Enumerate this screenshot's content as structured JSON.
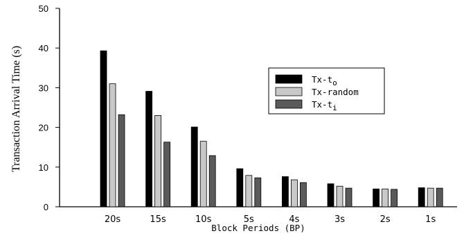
{
  "chart_data": {
    "type": "bar",
    "xlabel": "Block Periods (BP)",
    "ylabel": "Transaction Arrival Time (s)",
    "ylim": [
      0,
      50
    ],
    "yticks": [
      0,
      10,
      20,
      30,
      40,
      50
    ],
    "categories": [
      "20s",
      "15s",
      "10s",
      "5s",
      "4s",
      "3s",
      "2s",
      "1s"
    ],
    "series": [
      {
        "name": "Tx-t",
        "subscript": "o",
        "color": "#000000",
        "values": [
          39.3,
          29.1,
          20.1,
          9.6,
          7.6,
          5.8,
          4.5,
          4.8
        ]
      },
      {
        "name": "Tx-random",
        "subscript": "",
        "color": "#c8c8c8",
        "values": [
          31.0,
          23.0,
          16.5,
          7.9,
          6.8,
          5.2,
          4.5,
          4.7
        ]
      },
      {
        "name": "Tx-t",
        "subscript": "i",
        "color": "#5a5a5a",
        "values": [
          23.2,
          16.3,
          12.9,
          7.3,
          6.1,
          4.7,
          4.4,
          4.7
        ]
      }
    ],
    "legend_position": "right"
  }
}
